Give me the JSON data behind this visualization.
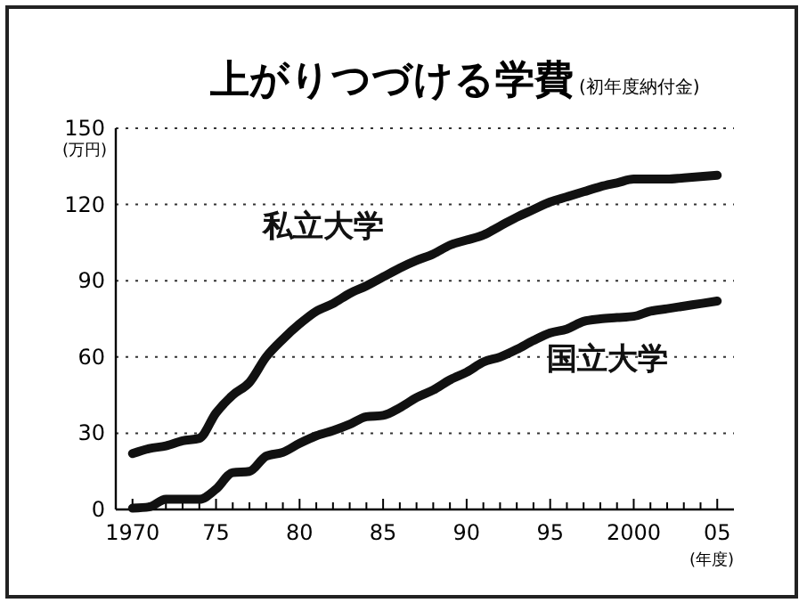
{
  "chart_data": {
    "type": "line",
    "title": "上がりつづける学費",
    "subtitle": "(初年度納付金)",
    "xlabel": "(年度)",
    "ylabel": "(万円)",
    "xlim": [
      1969,
      2006
    ],
    "ylim": [
      0,
      150
    ],
    "yticks": [
      0,
      30,
      60,
      90,
      120,
      150
    ],
    "xticks": [
      {
        "value": 1970,
        "label": "1970"
      },
      {
        "value": 1971,
        "label": null
      },
      {
        "value": 1972,
        "label": null
      },
      {
        "value": 1973,
        "label": null
      },
      {
        "value": 1974,
        "label": null
      },
      {
        "value": 1975,
        "label": "75"
      },
      {
        "value": 1976,
        "label": null
      },
      {
        "value": 1977,
        "label": null
      },
      {
        "value": 1978,
        "label": null
      },
      {
        "value": 1979,
        "label": null
      },
      {
        "value": 1980,
        "label": "80"
      },
      {
        "value": 1981,
        "label": null
      },
      {
        "value": 1982,
        "label": null
      },
      {
        "value": 1983,
        "label": null
      },
      {
        "value": 1984,
        "label": null
      },
      {
        "value": 1985,
        "label": "85"
      },
      {
        "value": 1986,
        "label": null
      },
      {
        "value": 1987,
        "label": null
      },
      {
        "value": 1988,
        "label": null
      },
      {
        "value": 1989,
        "label": null
      },
      {
        "value": 1990,
        "label": "90"
      },
      {
        "value": 1991,
        "label": null
      },
      {
        "value": 1992,
        "label": null
      },
      {
        "value": 1993,
        "label": null
      },
      {
        "value": 1994,
        "label": null
      },
      {
        "value": 1995,
        "label": "95"
      },
      {
        "value": 1996,
        "label": null
      },
      {
        "value": 1997,
        "label": null
      },
      {
        "value": 1998,
        "label": null
      },
      {
        "value": 1999,
        "label": null
      },
      {
        "value": 2000,
        "label": "2000"
      },
      {
        "value": 2001,
        "label": null
      },
      {
        "value": 2002,
        "label": null
      },
      {
        "value": 2003,
        "label": null
      },
      {
        "value": 2004,
        "label": null
      },
      {
        "value": 2005,
        "label": "05"
      }
    ],
    "x": [
      1970,
      1971,
      1972,
      1973,
      1974,
      1975,
      1976,
      1977,
      1978,
      1979,
      1980,
      1981,
      1982,
      1983,
      1984,
      1985,
      1986,
      1987,
      1988,
      1989,
      1990,
      1991,
      1992,
      1993,
      1994,
      1995,
      1996,
      1997,
      1998,
      1999,
      2000,
      2001,
      2002,
      2003,
      2004,
      2005
    ],
    "grid": "y",
    "legend": false,
    "marker": "none",
    "line_style": "solid",
    "series": [
      {
        "name": "私立大学",
        "color": "#111111",
        "values": [
          22,
          24,
          25,
          27,
          28,
          38,
          45,
          50,
          60,
          67,
          73,
          78,
          81,
          85,
          88,
          91.5,
          95,
          98,
          100.5,
          104,
          106,
          108,
          111.5,
          115,
          118,
          121,
          123,
          125,
          127,
          128.5,
          130,
          130,
          130,
          130.5,
          131,
          131.5
        ]
      },
      {
        "name": "国立大学",
        "color": "#111111",
        "values": [
          0.5,
          1,
          4,
          4,
          4,
          8,
          14.5,
          15,
          21,
          22.5,
          26,
          29,
          31,
          33.5,
          36.5,
          37,
          40,
          44,
          47,
          51,
          54,
          58,
          60,
          63,
          66.5,
          69.5,
          71,
          74,
          75,
          75.5,
          76,
          78,
          79,
          80,
          81,
          82
        ]
      }
    ]
  }
}
